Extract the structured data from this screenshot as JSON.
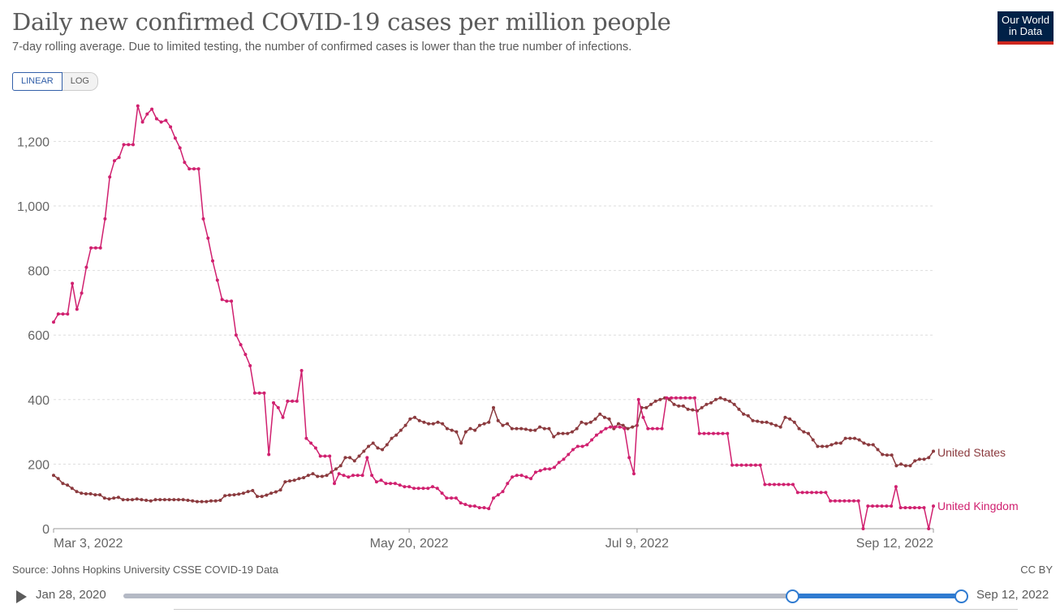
{
  "header": {
    "title": "Daily new confirmed COVID-19 cases per million people",
    "subtitle": "7-day rolling average. Due to limited testing, the number of confirmed cases is lower than the true number of infections.",
    "logo_line1": "Our World",
    "logo_line2": "in Data"
  },
  "controls": {
    "linear_label": "LINEAR",
    "log_label": "LOG"
  },
  "footer": {
    "source": "Source: Johns Hopkins University CSSE COVID-19 Data",
    "license": "CC BY"
  },
  "timeline": {
    "start_label": "Jan 28, 2020",
    "end_label": "Sep 12, 2022"
  },
  "colors": {
    "united_states": "#8b3a3e",
    "united_kingdom": "#d0206f",
    "grid": "#dddddd",
    "axis_text": "#666666"
  },
  "chart_data": {
    "type": "line",
    "title": "Daily new confirmed COVID-19 cases per million people",
    "xlabel": "",
    "ylabel": "",
    "ylim": [
      0,
      1300
    ],
    "yticks": [
      0,
      200,
      400,
      600,
      800,
      1000,
      1200
    ],
    "ytick_labels": [
      "0",
      "200",
      "400",
      "600",
      "800",
      "1,000",
      "1,200"
    ],
    "x_range_days": [
      0,
      193
    ],
    "xticks": [
      {
        "day": 0,
        "label": "Mar 3, 2022"
      },
      {
        "day": 78,
        "label": "May 20, 2022"
      },
      {
        "day": 128,
        "label": "Jul 9, 2022"
      },
      {
        "day": 193,
        "label": "Sep 12, 2022"
      }
    ],
    "legend_position": "right, at line ends",
    "series": [
      {
        "name": "United States",
        "label": "United States",
        "values": [
          165,
          155,
          140,
          135,
          125,
          115,
          110,
          108,
          108,
          105,
          105,
          95,
          92,
          95,
          97,
          90,
          90,
          90,
          92,
          90,
          88,
          86,
          90,
          90,
          90,
          90,
          90,
          90,
          90,
          88,
          86,
          84,
          84,
          84,
          86,
          86,
          88,
          102,
          104,
          105,
          107,
          110,
          115,
          118,
          100,
          100,
          104,
          110,
          114,
          120,
          145,
          148,
          150,
          155,
          158,
          165,
          170,
          162,
          162,
          165,
          175,
          185,
          195,
          220,
          220,
          210,
          225,
          240,
          255,
          265,
          250,
          245,
          260,
          280,
          290,
          305,
          320,
          340,
          345,
          335,
          330,
          325,
          325,
          330,
          325,
          310,
          305,
          300,
          265,
          300,
          310,
          305,
          320,
          325,
          330,
          375,
          335,
          320,
          325,
          310,
          310,
          310,
          308,
          305,
          305,
          315,
          310,
          310,
          285,
          295,
          295,
          295,
          300,
          310,
          330,
          325,
          330,
          340,
          355,
          345,
          340,
          310,
          325,
          320,
          310,
          315,
          320,
          375,
          375,
          385,
          395,
          400,
          405,
          400,
          385,
          380,
          380,
          370,
          368,
          365,
          375,
          385,
          390,
          400,
          405,
          400,
          395,
          385,
          370,
          355,
          350,
          335,
          333,
          330,
          330,
          325,
          320,
          315,
          345,
          340,
          330,
          310,
          300,
          295,
          275,
          255,
          255,
          255,
          260,
          265,
          265,
          280,
          280,
          280,
          275,
          265,
          260,
          260,
          245,
          230,
          228,
          228,
          195,
          200,
          195,
          195,
          210,
          215,
          215,
          220,
          240
        ]
      },
      {
        "name": "United Kingdom",
        "label": "United Kingdom",
        "values": [
          640,
          665,
          665,
          665,
          760,
          680,
          730,
          810,
          870,
          870,
          870,
          960,
          1090,
          1140,
          1150,
          1190,
          1190,
          1190,
          1310,
          1260,
          1285,
          1300,
          1270,
          1260,
          1265,
          1245,
          1210,
          1180,
          1135,
          1115,
          1115,
          1115,
          960,
          900,
          830,
          770,
          710,
          705,
          705,
          600,
          570,
          540,
          505,
          420,
          420,
          420,
          230,
          390,
          375,
          345,
          395,
          395,
          395,
          490,
          280,
          265,
          250,
          225,
          225,
          225,
          140,
          170,
          165,
          160,
          165,
          165,
          165,
          220,
          165,
          145,
          150,
          140,
          140,
          140,
          135,
          130,
          130,
          125,
          125,
          125,
          125,
          130,
          125,
          110,
          95,
          95,
          95,
          80,
          75,
          70,
          70,
          65,
          65,
          62,
          95,
          105,
          115,
          140,
          160,
          165,
          165,
          160,
          155,
          175,
          180,
          185,
          185,
          190,
          205,
          215,
          230,
          245,
          255,
          255,
          260,
          275,
          290,
          300,
          310,
          315,
          315,
          315,
          310,
          220,
          170,
          400,
          345,
          310,
          310,
          310,
          310,
          405,
          405,
          405,
          405,
          405,
          405,
          405,
          295,
          295,
          295,
          295,
          295,
          295,
          295,
          197,
          197,
          197,
          197,
          197,
          197,
          197,
          137,
          137,
          137,
          137,
          137,
          137,
          137,
          112,
          112,
          112,
          112,
          112,
          112,
          112,
          86,
          86,
          86,
          86,
          86,
          86,
          86,
          0,
          70,
          70,
          70,
          70,
          70,
          70,
          130,
          65,
          65,
          65,
          65,
          65,
          65,
          0,
          70
        ]
      }
    ]
  }
}
